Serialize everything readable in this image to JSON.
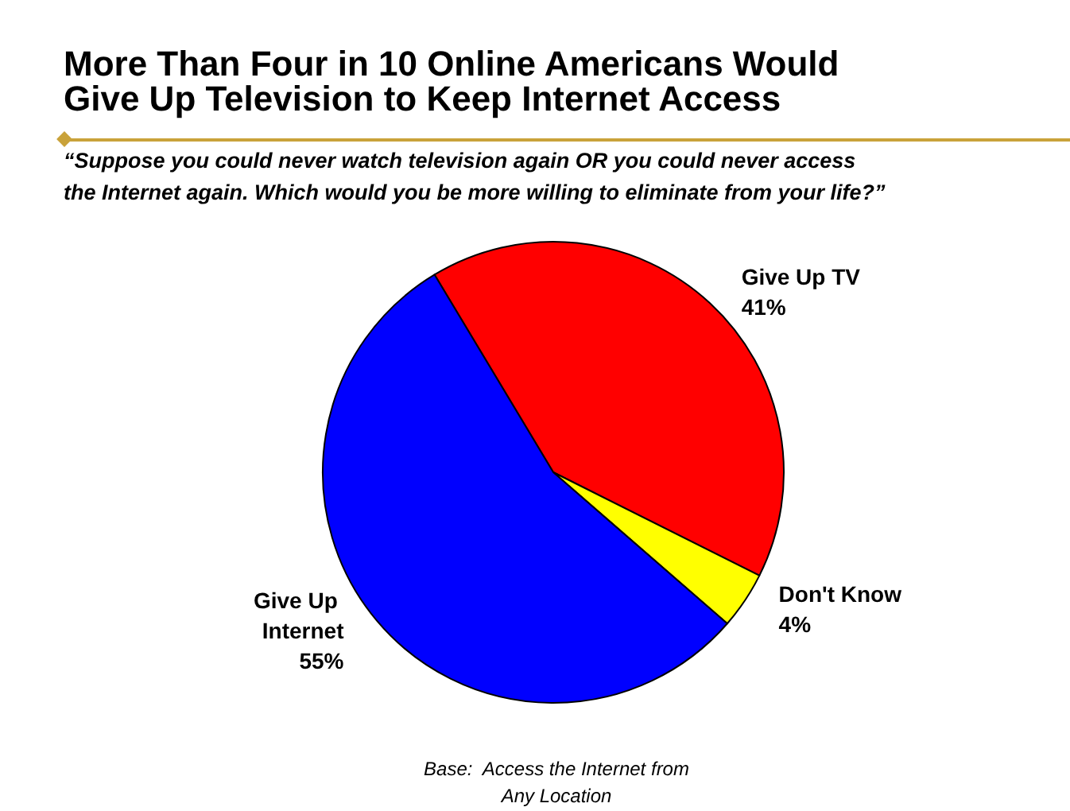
{
  "chart_data": {
    "type": "pie",
    "title": "More Than Four in 10 Online Americans Would\nGive Up Television to Keep Internet Access",
    "subtitle": "“Suppose you could never watch television again OR you could never access\nthe Internet again. Which would you be more willing to eliminate from your life?”",
    "categories": [
      "Give Up TV",
      "Don't Know",
      "Give Up Internet"
    ],
    "values": [
      41,
      4,
      55
    ],
    "colors": [
      "#ff0000",
      "#ffff00",
      "#0000ff"
    ],
    "value_labels": [
      "41%",
      "4%",
      "55%"
    ],
    "legend": false,
    "annotations": [
      "Base:  Access the Internet from\nAny Location"
    ]
  }
}
